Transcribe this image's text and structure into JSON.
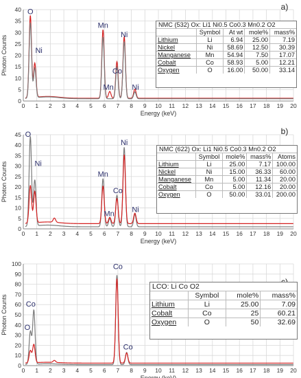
{
  "colors": {
    "red": "#d42020",
    "gray": "#7a7a7a",
    "grid": "#d9d9d9"
  },
  "chart_data": [
    {
      "type": "line",
      "panel_label": "a)",
      "xlabel": "Energy (keV)",
      "ylabel": "Photon Counts",
      "xlim": [
        0,
        20
      ],
      "ylim": [
        0,
        40
      ],
      "xticks": [
        "0",
        "1",
        "2",
        "3",
        "4",
        "5",
        "6",
        "7",
        "8",
        "9",
        "10",
        "11",
        "12",
        "13",
        "14",
        "15",
        "16",
        "17",
        "18",
        "19",
        "20"
      ],
      "yticks": [
        "0",
        "5",
        "10",
        "15",
        "20",
        "25",
        "30",
        "35",
        "40"
      ],
      "grid": true,
      "series": [
        {
          "color": "red",
          "peaks": [
            {
              "e": 0.52,
              "h": 36
            },
            {
              "e": 0.85,
              "h": 15
            },
            {
              "e": 6.4,
              "h": 3
            },
            {
              "e": 5.9,
              "h": 30
            },
            {
              "e": 6.93,
              "h": 16
            },
            {
              "e": 7.47,
              "h": 27
            },
            {
              "e": 8.26,
              "h": 4
            }
          ],
          "baseline": 1.2
        },
        {
          "color": "gray",
          "peaks": [
            {
              "e": 0.52,
              "h": 33
            },
            {
              "e": 0.85,
              "h": 13
            },
            {
              "e": 5.9,
              "h": 27
            },
            {
              "e": 6.93,
              "h": 14
            },
            {
              "e": 7.47,
              "h": 25
            },
            {
              "e": 8.26,
              "h": 3
            }
          ],
          "baseline": 1.0
        }
      ],
      "peak_labels": [
        {
          "text": "O",
          "e": 0.52,
          "y": 38
        },
        {
          "text": "Ni",
          "e": 1.15,
          "y": 21
        },
        {
          "text": "Mn",
          "e": 5.9,
          "y": 32
        },
        {
          "text": "Mn",
          "e": 6.3,
          "y": 5
        },
        {
          "text": "Co",
          "e": 6.95,
          "y": 12
        },
        {
          "text": "Ni",
          "e": 7.47,
          "y": 28
        },
        {
          "text": "Ni",
          "e": 8.3,
          "y": 5
        }
      ],
      "table": {
        "title": "NMC (532) Ox: Li1 Ni0.5 Co0.3 Mn0.2 O2",
        "headers": [
          "",
          "Symbol",
          "At wt",
          "mole%",
          "mass%"
        ],
        "rows": [
          [
            "Lithium",
            "Li",
            "6.94",
            "25.00",
            "7.19"
          ],
          [
            "Nickel",
            "Ni",
            "58.69",
            "12.50",
            "30.39"
          ],
          [
            "Manganese",
            "Mn",
            "54.94",
            "7.50",
            "17.07"
          ],
          [
            "Cobalt",
            "Co",
            "58.93",
            "5.00",
            "12.21"
          ],
          [
            "Oxygen",
            "O",
            "16.00",
            "50.00",
            "33.14"
          ]
        ]
      }
    },
    {
      "type": "line",
      "panel_label": "b)",
      "xlabel": "Energy (keV)",
      "ylabel": "Photon Counts",
      "xlim": [
        0,
        20
      ],
      "ylim": [
        0,
        45
      ],
      "xticks": [
        "0",
        "1",
        "2",
        "3",
        "4",
        "5",
        "6",
        "7",
        "8",
        "9",
        "10",
        "11",
        "12",
        "13",
        "14",
        "15",
        "16",
        "17",
        "18",
        "19",
        "20"
      ],
      "yticks": [
        "0",
        "5",
        "10",
        "15",
        "20",
        "25",
        "30",
        "35",
        "40",
        "45"
      ],
      "grid": true,
      "series": [
        {
          "color": "gray",
          "peaks": [
            {
              "e": 0.52,
              "h": 43
            },
            {
              "e": 0.85,
              "h": 22
            },
            {
              "e": 5.9,
              "h": 23
            },
            {
              "e": 6.4,
              "h": 4
            },
            {
              "e": 6.93,
              "h": 15
            },
            {
              "e": 7.47,
              "h": 38
            },
            {
              "e": 8.26,
              "h": 6
            }
          ],
          "baseline": 1.0
        },
        {
          "color": "red",
          "peaks": [
            {
              "e": 0.52,
              "h": 18
            },
            {
              "e": 0.85,
              "h": 15
            },
            {
              "e": 2.3,
              "h": 2
            },
            {
              "e": 5.9,
              "h": 18
            },
            {
              "e": 6.4,
              "h": 3
            },
            {
              "e": 6.93,
              "h": 12
            },
            {
              "e": 7.47,
              "h": 33
            },
            {
              "e": 8.26,
              "h": 5
            }
          ],
          "baseline": 2.5
        }
      ],
      "peak_labels": [
        {
          "text": "O",
          "e": 0.35,
          "y": 44
        },
        {
          "text": "Ni",
          "e": 1.1,
          "y": 30
        },
        {
          "text": "Mn",
          "e": 5.9,
          "y": 25
        },
        {
          "text": "Mn",
          "e": 6.35,
          "y": 6
        },
        {
          "text": "Co",
          "e": 7.0,
          "y": 17
        },
        {
          "text": "Ni",
          "e": 7.47,
          "y": 40
        },
        {
          "text": "Ni",
          "e": 8.3,
          "y": 8
        }
      ],
      "table": {
        "title": "NMC (622) Ox: Li1 Ni0.5 Co0.3 Mn0.2 O2",
        "headers": [
          "",
          "Symbol",
          "mole%",
          "mass%",
          "Atoms"
        ],
        "rows": [
          [
            "Lithium",
            "Li",
            "25.00",
            "7.17",
            "100.00"
          ],
          [
            "Nickel",
            "Ni",
            "15.00",
            "36.33",
            "60.00"
          ],
          [
            "Manganese",
            "Mn",
            "5.00",
            "11.34",
            "20.00"
          ],
          [
            "Cobalt",
            "Co",
            "5.00",
            "12.16",
            "20.00"
          ],
          [
            "Oxygen",
            "O",
            "50.00",
            "33.01",
            "200.00"
          ]
        ]
      }
    },
    {
      "type": "line",
      "panel_label": "c)",
      "xlabel": "Energy (keV)",
      "ylabel": "Photon Counts",
      "xlim": [
        0,
        20
      ],
      "ylim": [
        0,
        100
      ],
      "xticks": [
        "0",
        "1",
        "2",
        "3",
        "4",
        "5",
        "6",
        "7",
        "8",
        "9",
        "10",
        "11",
        "12",
        "13",
        "14",
        "15",
        "16",
        "17",
        "18",
        "19",
        "20"
      ],
      "yticks": [
        "0",
        "10",
        "20",
        "30",
        "40",
        "50",
        "60",
        "70",
        "80",
        "90",
        "100"
      ],
      "grid": true,
      "series": [
        {
          "color": "gray",
          "peaks": [
            {
              "e": 0.52,
              "h": 32
            },
            {
              "e": 0.78,
              "h": 53
            },
            {
              "e": 6.93,
              "h": 88
            },
            {
              "e": 7.65,
              "h": 12
            }
          ],
          "baseline": 1.0
        },
        {
          "color": "red",
          "peaks": [
            {
              "e": 0.52,
              "h": 12
            },
            {
              "e": 0.78,
              "h": 18
            },
            {
              "e": 2.3,
              "h": 2
            },
            {
              "e": 6.93,
              "h": 83
            },
            {
              "e": 7.65,
              "h": 10
            }
          ],
          "baseline": 2.5
        }
      ],
      "peak_labels": [
        {
          "text": "Co",
          "e": 0.55,
          "y": 58
        },
        {
          "text": "O",
          "e": 0.3,
          "y": 35
        },
        {
          "text": "Co",
          "e": 7.0,
          "y": 95
        },
        {
          "text": "Co",
          "e": 7.75,
          "y": 16
        }
      ],
      "table": {
        "title": "LCO: Li Co O2",
        "headers": [
          "",
          "Symbol",
          "mole%",
          "mass%"
        ],
        "rows": [
          [
            "Lithium",
            "Li",
            "25.00",
            "7.09"
          ],
          [
            "Cobalt",
            "Co",
            "25",
            "60.21"
          ],
          [
            "Oxygen",
            "O",
            "50",
            "32.69"
          ]
        ]
      }
    }
  ]
}
